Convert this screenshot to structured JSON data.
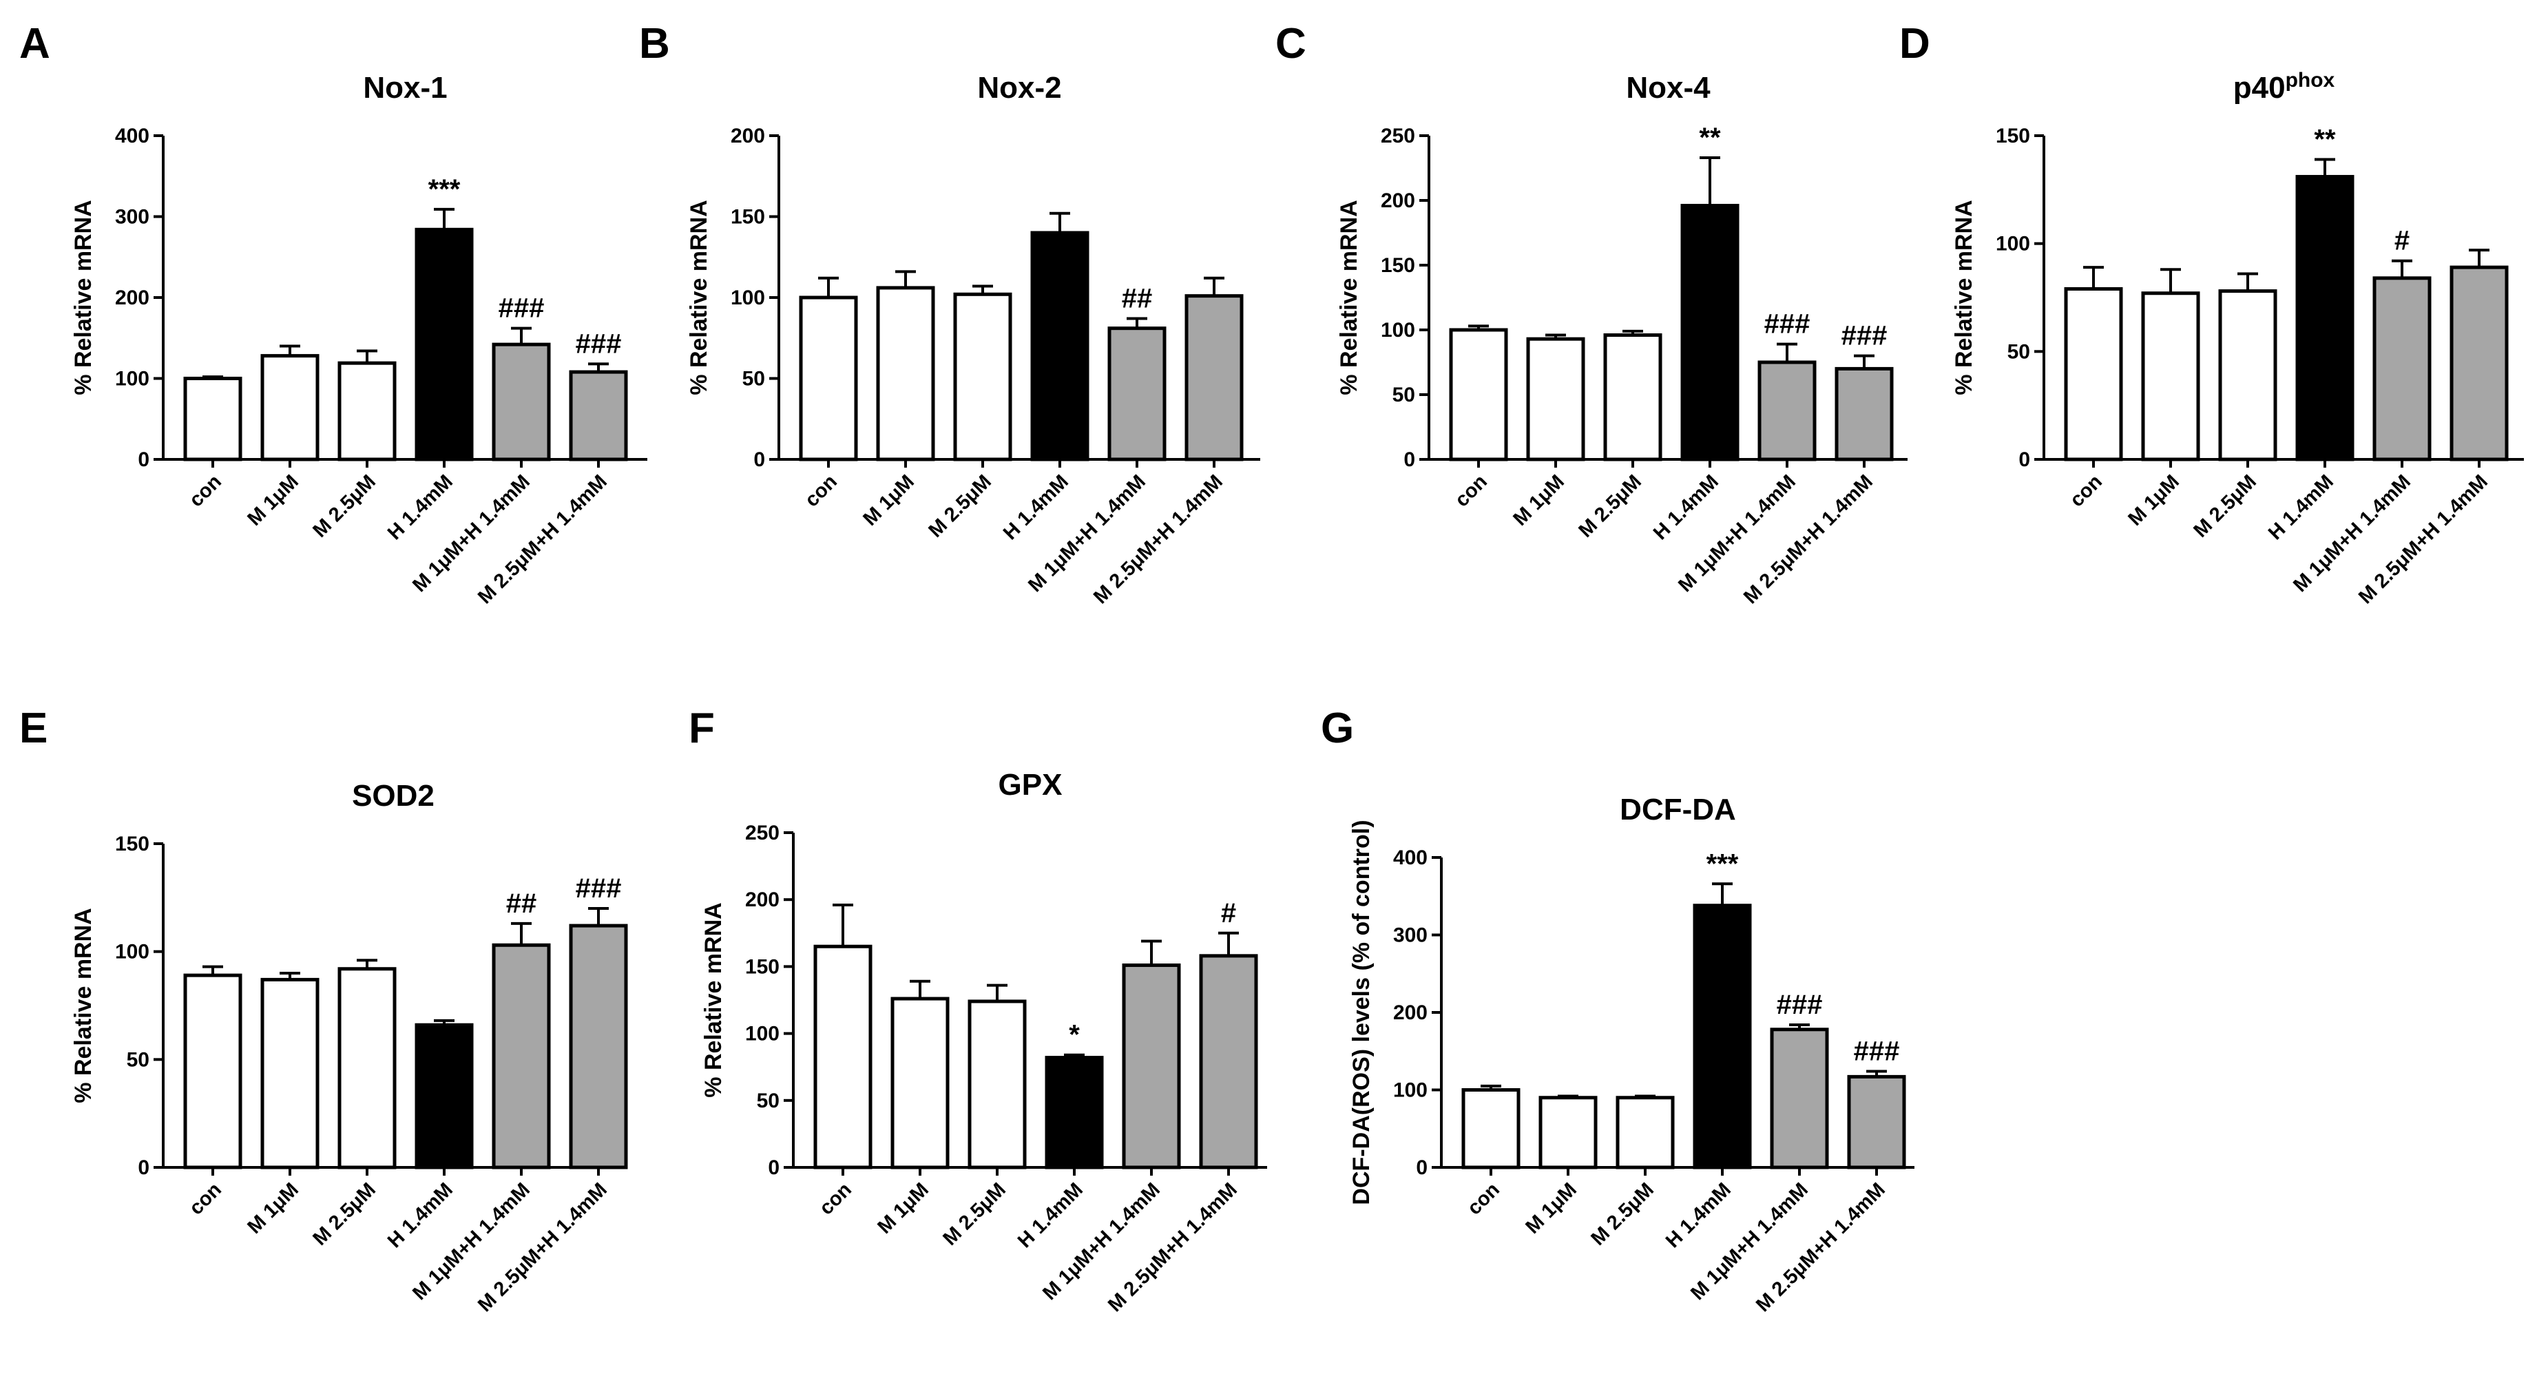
{
  "chart_data": [
    {
      "panel": "A",
      "type": "bar",
      "title": "Nox-1",
      "title_superscript": "",
      "ylabel": "% Relative mRNA",
      "ylim": [
        0,
        400
      ],
      "yticks": [
        "0",
        "100",
        "200",
        "300",
        "400"
      ],
      "categories": [
        "con",
        "M 1μM",
        "M 2.5μM",
        "H 1.4mM",
        "M 1μM+H 1.4mM",
        "M 2.5μM+H 1.4mM"
      ],
      "values": [
        100,
        128,
        119,
        284,
        142,
        108
      ],
      "errors": [
        2,
        12,
        15,
        25,
        20,
        10
      ],
      "bar_colors": [
        "#ffffff",
        "#ffffff",
        "#ffffff",
        "#000000",
        "#a6a6a6",
        "#a6a6a6"
      ],
      "annotations": [
        "",
        "",
        "",
        "***",
        "###",
        "###"
      ]
    },
    {
      "panel": "B",
      "type": "bar",
      "title": "Nox-2",
      "title_superscript": "",
      "ylabel": "% Relative mRNA",
      "ylim": [
        0,
        200
      ],
      "yticks": [
        "0",
        "50",
        "100",
        "150",
        "200"
      ],
      "categories": [
        "con",
        "M 1μM",
        "M 2.5μM",
        "H 1.4mM",
        "M 1μM+H 1.4mM",
        "M 2.5μM+H 1.4mM"
      ],
      "values": [
        100,
        106,
        102,
        140,
        81,
        101
      ],
      "errors": [
        12,
        10,
        5,
        12,
        6,
        11
      ],
      "bar_colors": [
        "#ffffff",
        "#ffffff",
        "#ffffff",
        "#000000",
        "#a6a6a6",
        "#a6a6a6"
      ],
      "annotations": [
        "",
        "",
        "",
        "",
        "##",
        ""
      ]
    },
    {
      "panel": "C",
      "type": "bar",
      "title": "Nox-4",
      "title_superscript": "",
      "ylabel": "% Relative mRNA",
      "ylim": [
        0,
        250
      ],
      "yticks": [
        "0",
        "50",
        "100",
        "150",
        "200",
        "250"
      ],
      "categories": [
        "con",
        "M 1μM",
        "M 2.5μM",
        "H 1.4mM",
        "M 1μM+H 1.4mM",
        "M 2.5μM+H 1.4mM"
      ],
      "values": [
        100,
        93,
        96,
        196,
        75,
        70
      ],
      "errors": [
        3,
        3,
        3,
        37,
        14,
        10
      ],
      "bar_colors": [
        "#ffffff",
        "#ffffff",
        "#ffffff",
        "#000000",
        "#a6a6a6",
        "#a6a6a6"
      ],
      "annotations": [
        "",
        "",
        "",
        "**",
        "###",
        "###"
      ]
    },
    {
      "panel": "D",
      "type": "bar",
      "title": "p40",
      "title_superscript": "phox",
      "ylabel": "% Relative mRNA",
      "ylim": [
        0,
        150
      ],
      "yticks": [
        "0",
        "50",
        "100",
        "150"
      ],
      "categories": [
        "con",
        "M 1μM",
        "M 2.5μM",
        "H 1.4mM",
        "M 1μM+H 1.4mM",
        "M 2.5μM+H 1.4mM"
      ],
      "values": [
        79,
        77,
        78,
        131,
        84,
        89
      ],
      "errors": [
        10,
        11,
        8,
        8,
        8,
        8
      ],
      "bar_colors": [
        "#ffffff",
        "#ffffff",
        "#ffffff",
        "#000000",
        "#a6a6a6",
        "#a6a6a6"
      ],
      "annotations": [
        "",
        "",
        "",
        "**",
        "#",
        ""
      ]
    },
    {
      "panel": "E",
      "type": "bar",
      "title": "SOD2",
      "title_superscript": "",
      "ylabel": "% Relative mRNA",
      "ylim": [
        0,
        150
      ],
      "yticks": [
        "0",
        "50",
        "100",
        "150"
      ],
      "categories": [
        "con",
        "M 1μM",
        "M 2.5μM",
        "H 1.4mM",
        "M 1μM+H 1.4mM",
        "M 2.5μM+H 1.4mM"
      ],
      "values": [
        89,
        87,
        92,
        66,
        103,
        112
      ],
      "errors": [
        4,
        3,
        4,
        2,
        10,
        8
      ],
      "bar_colors": [
        "#ffffff",
        "#ffffff",
        "#ffffff",
        "#000000",
        "#a6a6a6",
        "#a6a6a6"
      ],
      "annotations": [
        "",
        "",
        "",
        "",
        "##",
        "###"
      ]
    },
    {
      "panel": "F",
      "type": "bar",
      "title": "GPX",
      "title_superscript": "",
      "ylabel": "% Relative mRNA",
      "ylim": [
        0,
        250
      ],
      "yticks": [
        "0",
        "50",
        "100",
        "150",
        "200",
        "250"
      ],
      "categories": [
        "con",
        "M 1μM",
        "M 2.5μM",
        "H 1.4mM",
        "M 1μM+H 1.4mM",
        "M 2.5μM+H 1.4mM"
      ],
      "values": [
        165,
        126,
        124,
        82,
        151,
        158
      ],
      "errors": [
        31,
        13,
        12,
        2,
        18,
        17
      ],
      "bar_colors": [
        "#ffffff",
        "#ffffff",
        "#ffffff",
        "#000000",
        "#a6a6a6",
        "#a6a6a6"
      ],
      "annotations": [
        "",
        "",
        "",
        "*",
        "",
        "#"
      ]
    },
    {
      "panel": "G",
      "type": "bar",
      "title": "DCF-DA",
      "title_superscript": "",
      "ylabel": "DCF-DA(ROS) levels (% of control)",
      "ylim": [
        0,
        400
      ],
      "yticks": [
        "0",
        "100",
        "200",
        "300",
        "400"
      ],
      "categories": [
        "con",
        "M 1μM",
        "M 2.5μM",
        "H 1.4mM",
        "M 1μM+H 1.4mM",
        "M 2.5μM+H 1.4mM"
      ],
      "values": [
        100,
        90,
        90,
        338,
        178,
        117
      ],
      "errors": [
        5,
        2,
        2,
        28,
        6,
        7
      ],
      "bar_colors": [
        "#ffffff",
        "#ffffff",
        "#ffffff",
        "#000000",
        "#a6a6a6",
        "#a6a6a6"
      ],
      "annotations": [
        "",
        "",
        "",
        "***",
        "###",
        "###"
      ]
    }
  ]
}
